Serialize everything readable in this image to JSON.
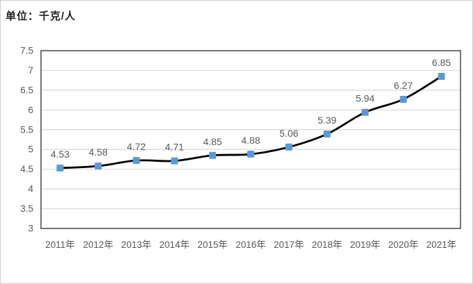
{
  "chart_data": {
    "type": "line",
    "title": "单位：千克/人",
    "categories": [
      "2011年",
      "2012年",
      "2013年",
      "2014年",
      "2015年",
      "2016年",
      "2017年",
      "2018年",
      "2019年",
      "2020年",
      "2021年"
    ],
    "series": [
      {
        "name": "",
        "values": [
          4.53,
          4.58,
          4.72,
          4.71,
          4.85,
          4.88,
          5.06,
          5.39,
          5.94,
          6.27,
          6.85
        ],
        "data_labels": [
          "4.53",
          "4.58",
          "4.72",
          "4.71",
          "4.85",
          "4.88",
          "5.06",
          "5.39",
          "5.94",
          "6.27",
          "6.85"
        ]
      }
    ],
    "ylim": [
      3,
      7.5
    ],
    "ytick_step": 0.5,
    "yticks": [
      3,
      3.5,
      4,
      4.5,
      5,
      5.5,
      6,
      6.5,
      7,
      7.5
    ],
    "ytick_labels": [
      "3",
      "3.5",
      "4",
      "4.5",
      "5",
      "5.5",
      "6",
      "6.5",
      "7",
      "7.5"
    ],
    "xlabel": "",
    "ylabel": "",
    "grid": true,
    "legend": "none",
    "smooth_line": true,
    "marker": "square",
    "style": {
      "line_color": "#000000",
      "marker_color": "#5b9bd5",
      "axis_label_color": "#595959",
      "data_label_color": "#595959",
      "gridline_color": "#d9d9d9",
      "plot_border_color": "#2b2b2b",
      "title_color": "#1f1f1f",
      "figure_border_color": "#cfcfcf"
    }
  }
}
